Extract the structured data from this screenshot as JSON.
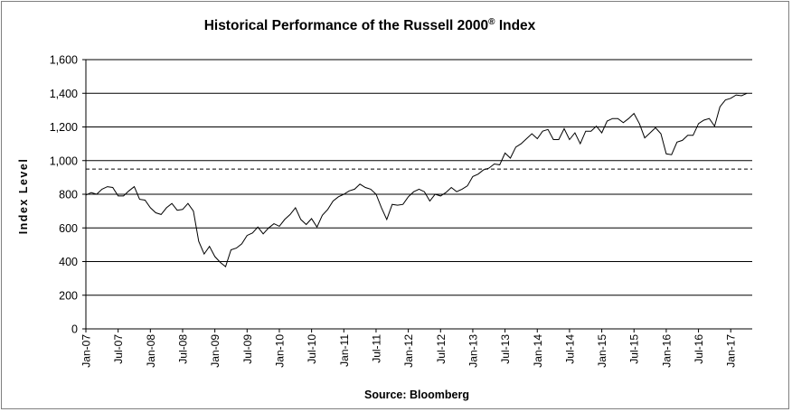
{
  "chart_data": {
    "type": "line",
    "title": "Historical Performance of the Russell 2000",
    "title_mark": "®",
    "title_suffix": "Index",
    "xlabel": "Source: Bloomberg",
    "ylabel": "Index Level",
    "ylim": [
      0,
      1600
    ],
    "yticks": [
      0,
      200,
      400,
      600,
      800,
      1000,
      1200,
      1400,
      1600
    ],
    "ytick_labels": [
      "0",
      "200",
      "400",
      "600",
      "800",
      "1,000",
      "1,200",
      "1,400",
      "1,600"
    ],
    "xlim": [
      "Jan-07",
      "May-17"
    ],
    "xtick_labels": [
      "Jan-07",
      "Jul-07",
      "Jan-08",
      "Jul-08",
      "Jan-09",
      "Jul-09",
      "Jan-10",
      "Jul-10",
      "Jan-11",
      "Jul-11",
      "Jan-12",
      "Jul-12",
      "Jan-13",
      "Jul-13",
      "Jan-14",
      "Jul-14",
      "Jan-15",
      "Jul-15",
      "Jan-16",
      "Jul-16",
      "Jan-17"
    ],
    "grid": "horizontal",
    "reference_line": {
      "value": 950,
      "style": "dashed"
    },
    "series": [
      {
        "color": "#000000",
        "x": [
          "Jan-07",
          "Feb-07",
          "Mar-07",
          "Apr-07",
          "May-07",
          "Jun-07",
          "Jul-07",
          "Aug-07",
          "Sep-07",
          "Oct-07",
          "Nov-07",
          "Dec-07",
          "Jan-08",
          "Feb-08",
          "Mar-08",
          "Apr-08",
          "May-08",
          "Jun-08",
          "Jul-08",
          "Aug-08",
          "Sep-08",
          "Oct-08",
          "Nov-08",
          "Dec-08",
          "Jan-09",
          "Feb-09",
          "Mar-09",
          "Apr-09",
          "May-09",
          "Jun-09",
          "Jul-09",
          "Aug-09",
          "Sep-09",
          "Oct-09",
          "Nov-09",
          "Dec-09",
          "Jan-10",
          "Feb-10",
          "Mar-10",
          "Apr-10",
          "May-10",
          "Jun-10",
          "Jul-10",
          "Aug-10",
          "Sep-10",
          "Oct-10",
          "Nov-10",
          "Dec-10",
          "Jan-11",
          "Feb-11",
          "Mar-11",
          "Apr-11",
          "May-11",
          "Jun-11",
          "Jul-11",
          "Aug-11",
          "Sep-11",
          "Oct-11",
          "Nov-11",
          "Dec-11",
          "Jan-12",
          "Feb-12",
          "Mar-12",
          "Apr-12",
          "May-12",
          "Jun-12",
          "Jul-12",
          "Aug-12",
          "Sep-12",
          "Oct-12",
          "Nov-12",
          "Dec-12",
          "Jan-13",
          "Feb-13",
          "Mar-13",
          "Apr-13",
          "May-13",
          "Jun-13",
          "Jul-13",
          "Aug-13",
          "Sep-13",
          "Oct-13",
          "Nov-13",
          "Dec-13",
          "Jan-14",
          "Feb-14",
          "Mar-14",
          "Apr-14",
          "May-14",
          "Jun-14",
          "Jul-14",
          "Aug-14",
          "Sep-14",
          "Oct-14",
          "Nov-14",
          "Dec-14",
          "Jan-15",
          "Feb-15",
          "Mar-15",
          "Apr-15",
          "May-15",
          "Jun-15",
          "Jul-15",
          "Aug-15",
          "Sep-15",
          "Oct-15",
          "Nov-15",
          "Dec-15",
          "Jan-16",
          "Feb-16",
          "Mar-16",
          "Apr-16",
          "May-16",
          "Jun-16",
          "Jul-16",
          "Aug-16",
          "Sep-16",
          "Oct-16",
          "Nov-16",
          "Dec-16",
          "Jan-17",
          "Feb-17",
          "Mar-17",
          "Apr-17"
        ],
        "values": [
          795,
          810,
          800,
          830,
          845,
          840,
          790,
          790,
          820,
          845,
          770,
          765,
          720,
          690,
          680,
          720,
          745,
          705,
          710,
          745,
          700,
          520,
          445,
          490,
          430,
          395,
          370,
          470,
          480,
          505,
          555,
          570,
          605,
          565,
          600,
          625,
          610,
          650,
          680,
          720,
          650,
          620,
          655,
          605,
          675,
          710,
          760,
          785,
          800,
          820,
          830,
          860,
          840,
          830,
          800,
          720,
          650,
          740,
          735,
          740,
          785,
          815,
          830,
          815,
          760,
          800,
          790,
          810,
          840,
          815,
          830,
          850,
          905,
          920,
          945,
          955,
          980,
          975,
          1045,
          1015,
          1080,
          1100,
          1130,
          1160,
          1130,
          1175,
          1185,
          1125,
          1125,
          1190,
          1125,
          1165,
          1100,
          1175,
          1175,
          1205,
          1165,
          1235,
          1250,
          1250,
          1225,
          1250,
          1280,
          1220,
          1135,
          1165,
          1195,
          1160,
          1040,
          1035,
          1110,
          1120,
          1150,
          1150,
          1220,
          1240,
          1250,
          1205,
          1320,
          1360,
          1370,
          1390,
          1385,
          1400
        ]
      }
    ]
  }
}
